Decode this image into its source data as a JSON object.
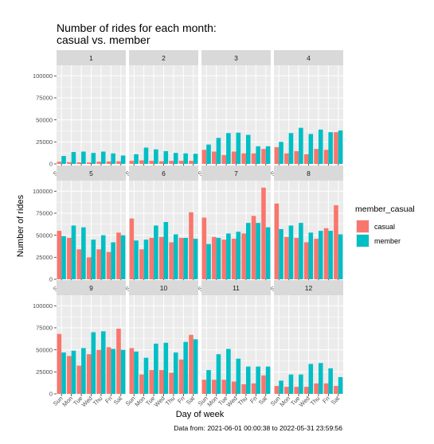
{
  "chart_data": {
    "type": "bar",
    "title_line1": "Number of rides for each month:",
    "title_line2": "casual vs. member",
    "xlabel": "Day of week",
    "ylabel": "Number of rides",
    "caption": "Data from: 2021-06-01 00:00:38 to 2022-05-31 23:59:56",
    "categories": [
      "Sun",
      "Mon",
      "Tue",
      "Wed",
      "Thu",
      "Fri",
      "Sat"
    ],
    "y_ticks": [
      0,
      25000,
      50000,
      75000,
      100000
    ],
    "y_tick_labels": [
      "0",
      "25000",
      "50000",
      "75000",
      "100000"
    ],
    "ylim": [
      0,
      112000
    ],
    "grid": true,
    "legend": {
      "title": "member_casual",
      "placement": "right",
      "entries": [
        {
          "label": "casual",
          "color": "#F8766D"
        },
        {
          "label": "member",
          "color": "#00BFC4"
        }
      ]
    },
    "facets": [
      {
        "label": "1",
        "casual": [
          2500,
          2000,
          1800,
          1700,
          2500,
          2800,
          3000
        ],
        "member": [
          9000,
          13500,
          14000,
          12500,
          14000,
          12000,
          9500
        ]
      },
      {
        "label": "2",
        "casual": [
          3500,
          4000,
          3500,
          3000,
          3500,
          3500,
          3500
        ],
        "member": [
          11000,
          18500,
          16500,
          14500,
          12500,
          12000,
          11500
        ]
      },
      {
        "label": "3",
        "casual": [
          16000,
          14000,
          10000,
          14000,
          12000,
          12000,
          17000
        ],
        "member": [
          22000,
          29500,
          35000,
          35500,
          33000,
          20000,
          20000
        ]
      },
      {
        "label": "4",
        "casual": [
          19000,
          12000,
          14500,
          11000,
          17000,
          16000,
          36000
        ],
        "member": [
          25000,
          35000,
          41000,
          34000,
          39000,
          36000,
          38000
        ]
      },
      {
        "label": "5",
        "casual": [
          55000,
          47000,
          34000,
          25000,
          34000,
          31000,
          53000
        ],
        "member": [
          49000,
          61000,
          59000,
          45000,
          50000,
          42000,
          50000
        ]
      },
      {
        "label": "6",
        "casual": [
          69000,
          34000,
          47000,
          48000,
          42000,
          47000,
          76000
        ],
        "member": [
          44000,
          45000,
          61000,
          65000,
          51000,
          47000,
          46000
        ]
      },
      {
        "label": "7",
        "casual": [
          70000,
          48000,
          45000,
          46000,
          52000,
          72000,
          104000
        ],
        "member": [
          40000,
          47000,
          52000,
          54000,
          64000,
          64000,
          59000
        ]
      },
      {
        "label": "8",
        "casual": [
          86000,
          48000,
          47000,
          42000,
          46000,
          58000,
          84000
        ],
        "member": [
          57000,
          61000,
          64000,
          53000,
          55000,
          55000,
          51000
        ]
      },
      {
        "label": "9",
        "casual": [
          68000,
          43000,
          32000,
          45000,
          50000,
          53000,
          74000
        ],
        "member": [
          47000,
          49000,
          52000,
          70000,
          71000,
          51000,
          50000
        ]
      },
      {
        "label": "10",
        "casual": [
          52000,
          22000,
          27000,
          27000,
          24000,
          39000,
          67000
        ],
        "member": [
          48000,
          41000,
          57000,
          58000,
          47000,
          59000,
          62000
        ]
      },
      {
        "label": "11",
        "casual": [
          16000,
          16000,
          16000,
          14000,
          11000,
          12000,
          21000
        ],
        "member": [
          27000,
          45000,
          51000,
          40000,
          31000,
          31000,
          31000
        ]
      },
      {
        "label": "12",
        "casual": [
          9000,
          8000,
          8000,
          8000,
          12000,
          12000,
          9000
        ],
        "member": [
          15000,
          22000,
          22000,
          34000,
          35000,
          29000,
          19000
        ]
      }
    ]
  }
}
